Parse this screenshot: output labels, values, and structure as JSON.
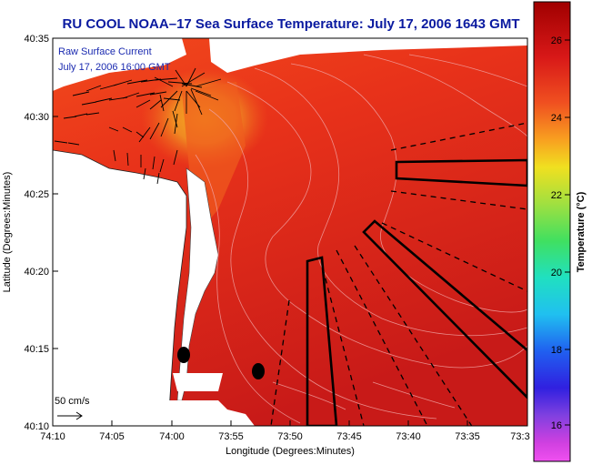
{
  "title": "RU COOL  NOAA–17  Sea Surface Temperature:  July 17, 2006 1643 GMT",
  "overlay": {
    "line1": "Raw Surface Current",
    "line2": "July 17, 2006 16:00 GMT"
  },
  "axes": {
    "xlabel": "Longitude (Degrees:Minutes)",
    "ylabel": "Latitude (Degrees:Minutes)",
    "xticks": [
      "74:10",
      "74:05",
      "74:00",
      "73:55",
      "73:50",
      "73:45",
      "73:40",
      "73:35",
      "73:3"
    ],
    "yticks": [
      "40:35",
      "40:30",
      "40:25",
      "40:20",
      "40:15",
      "40:10"
    ]
  },
  "scale": {
    "label": "50 cm/s"
  },
  "colorbar": {
    "label": "Temperature (°C)",
    "ticks": [
      "26",
      "24",
      "22",
      "20",
      "18",
      "16"
    ]
  },
  "colors": {
    "title": "#0a1aa0",
    "warm": "#e6281e",
    "land": "#ffffff"
  }
}
